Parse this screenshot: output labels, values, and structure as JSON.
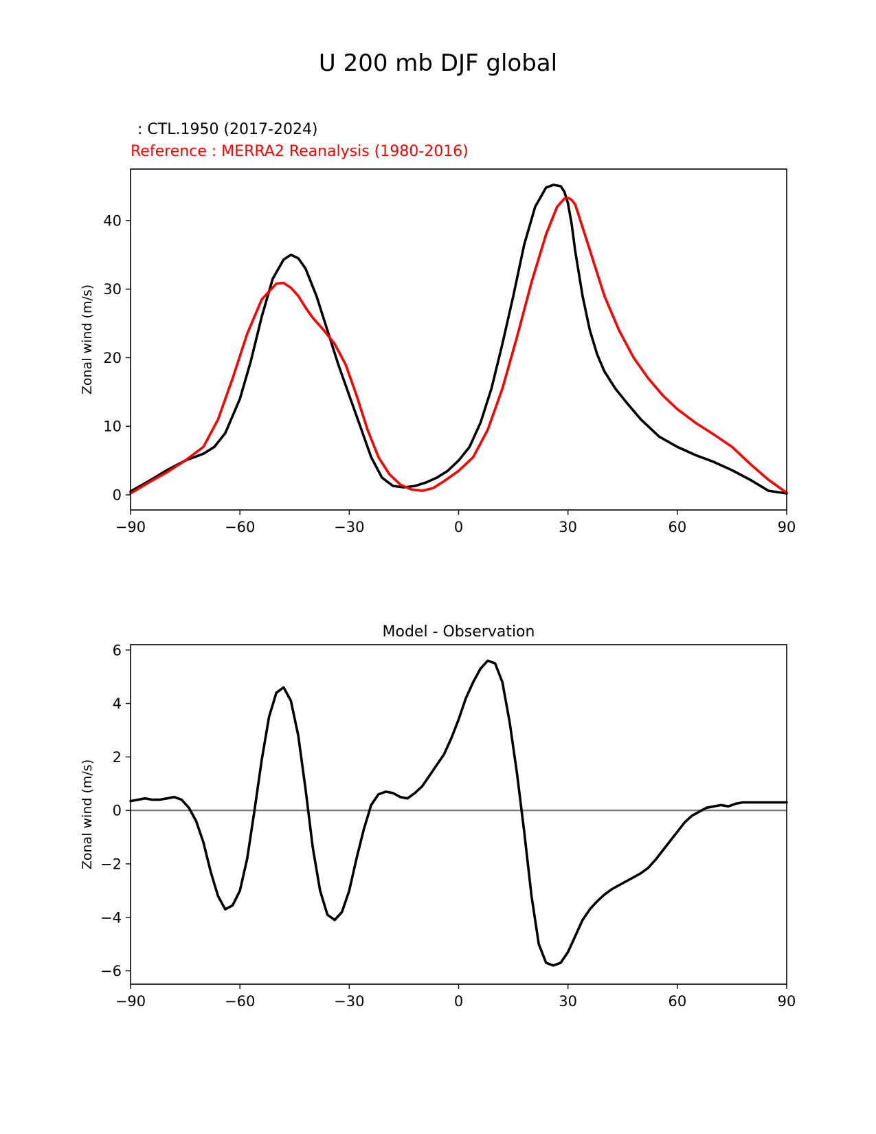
{
  "figure": {
    "title": "U 200 mb DJF global",
    "legend_model": ": CTL.1950 (2017-2024)",
    "legend_reference": "Reference : MERRA2 Reanalysis (1980-2016)",
    "colors": {
      "model": "#000000",
      "reference": "#ff0000",
      "zero_line": "#808080"
    }
  },
  "chart_data": [
    {
      "type": "line",
      "title": "",
      "xlabel": "",
      "ylabel": "Zonal wind (m/s)",
      "xlim": [
        -90,
        90
      ],
      "ylim": [
        -2.2,
        47.5
      ],
      "xticks": [
        -90,
        -60,
        -30,
        0,
        30,
        60,
        90
      ],
      "xtick_labels": [
        "−90",
        "−60",
        "−30",
        "0",
        "30",
        "60",
        "90"
      ],
      "yticks": [
        0,
        10,
        20,
        30,
        40
      ],
      "ytick_labels": [
        "0",
        "10",
        "20",
        "30",
        "40"
      ],
      "grid": false,
      "series": [
        {
          "name": "CTL.1950 (2017-2024)",
          "color": "#000000",
          "x": [
            -90,
            -85,
            -80,
            -75,
            -70,
            -67,
            -64,
            -60,
            -57,
            -54,
            -51,
            -48,
            -46,
            -44,
            -42,
            -39,
            -36,
            -33,
            -30,
            -27,
            -24,
            -21,
            -18,
            -15,
            -12,
            -9,
            -6,
            -3,
            0,
            3,
            6,
            9,
            12,
            15,
            18,
            21,
            24,
            26,
            28,
            29,
            30,
            31,
            32,
            34,
            36,
            38,
            40,
            43,
            46,
            50,
            55,
            60,
            65,
            70,
            75,
            80,
            85,
            90
          ],
          "values": [
            0.5,
            2.0,
            3.6,
            5.0,
            6.0,
            7.0,
            9.0,
            14.0,
            19.5,
            26.0,
            31.5,
            34.3,
            35.0,
            34.5,
            33.0,
            29.0,
            24.0,
            19.0,
            14.5,
            10.0,
            5.5,
            2.5,
            1.3,
            1.1,
            1.3,
            1.8,
            2.5,
            3.5,
            5.0,
            7.0,
            10.5,
            15.5,
            22.0,
            29.0,
            36.5,
            42.0,
            44.8,
            45.2,
            45.0,
            44.2,
            42.5,
            39.5,
            35.5,
            29.0,
            24.0,
            20.5,
            18.0,
            15.5,
            13.5,
            11.0,
            8.5,
            7.0,
            5.8,
            4.8,
            3.6,
            2.2,
            0.6,
            0.2
          ]
        },
        {
          "name": "Reference : MERRA2 Reanalysis (1980-2016)",
          "color": "#ff0000",
          "x": [
            -90,
            -85,
            -80,
            -75,
            -70,
            -66,
            -62,
            -58,
            -54,
            -50,
            -48,
            -46,
            -44,
            -42,
            -40,
            -37,
            -34,
            -31,
            -28,
            -25,
            -22,
            -19,
            -16,
            -13,
            -10,
            -7,
            -4,
            0,
            4,
            8,
            12,
            16,
            20,
            24,
            27,
            29,
            30,
            31,
            32,
            34,
            37,
            40,
            44,
            48,
            52,
            56,
            60,
            65,
            70,
            75,
            80,
            85,
            90
          ],
          "values": [
            0.2,
            1.8,
            3.3,
            5.0,
            7.0,
            11.0,
            17.0,
            23.5,
            28.5,
            30.8,
            30.9,
            30.2,
            29.0,
            27.3,
            25.8,
            24.0,
            22.0,
            19.0,
            14.5,
            9.5,
            5.5,
            3.0,
            1.5,
            0.8,
            0.6,
            1.0,
            2.0,
            3.5,
            5.5,
            9.5,
            15.5,
            23.0,
            31.0,
            38.0,
            42.0,
            43.2,
            43.3,
            43.0,
            42.3,
            39.0,
            34.0,
            29.0,
            24.0,
            20.0,
            17.0,
            14.5,
            12.5,
            10.5,
            8.8,
            7.0,
            4.5,
            2.2,
            0.3
          ]
        }
      ]
    },
    {
      "type": "line",
      "title": "Model - Observation",
      "xlabel": "",
      "ylabel": "Zonal wind (m/s)",
      "xlim": [
        -90,
        90
      ],
      "ylim": [
        -6.5,
        6.2
      ],
      "xticks": [
        -90,
        -60,
        -30,
        0,
        30,
        60,
        90
      ],
      "xtick_labels": [
        "−90",
        "−60",
        "−30",
        "0",
        "30",
        "60",
        "90"
      ],
      "yticks": [
        -6,
        -4,
        -2,
        0,
        2,
        4,
        6
      ],
      "ytick_labels": [
        "−6",
        "−4",
        "−2",
        "0",
        "2",
        "4",
        "6"
      ],
      "grid": false,
      "reference_line": 0,
      "series": [
        {
          "name": "Model - Observation",
          "color": "#000000",
          "x": [
            -90,
            -88,
            -86,
            -84,
            -82,
            -80,
            -78,
            -76,
            -74,
            -72,
            -70,
            -68,
            -66,
            -64,
            -62,
            -60,
            -58,
            -56,
            -54,
            -52,
            -50,
            -48,
            -46,
            -44,
            -42,
            -40,
            -38,
            -36,
            -34,
            -32,
            -30,
            -28,
            -26,
            -24,
            -22,
            -20,
            -18,
            -16,
            -14,
            -12,
            -10,
            -8,
            -6,
            -4,
            -2,
            0,
            2,
            4,
            6,
            8,
            10,
            12,
            14,
            16,
            18,
            20,
            22,
            24,
            26,
            28,
            30,
            32,
            34,
            36,
            38,
            40,
            42,
            44,
            46,
            48,
            50,
            52,
            54,
            56,
            58,
            60,
            62,
            64,
            66,
            68,
            70,
            72,
            74,
            76,
            78,
            80,
            82,
            84,
            86,
            88,
            90
          ],
          "values": [
            0.35,
            0.4,
            0.45,
            0.4,
            0.4,
            0.45,
            0.5,
            0.4,
            0.1,
            -0.4,
            -1.2,
            -2.3,
            -3.2,
            -3.7,
            -3.55,
            -3.0,
            -1.8,
            0.0,
            1.9,
            3.5,
            4.4,
            4.6,
            4.1,
            2.8,
            0.8,
            -1.4,
            -3.0,
            -3.9,
            -4.1,
            -3.8,
            -3.0,
            -1.8,
            -0.7,
            0.2,
            0.6,
            0.7,
            0.65,
            0.5,
            0.45,
            0.65,
            0.9,
            1.3,
            1.7,
            2.1,
            2.7,
            3.4,
            4.2,
            4.8,
            5.3,
            5.6,
            5.5,
            4.8,
            3.3,
            1.4,
            -0.8,
            -3.2,
            -5.0,
            -5.7,
            -5.8,
            -5.7,
            -5.3,
            -4.7,
            -4.1,
            -3.7,
            -3.4,
            -3.15,
            -2.95,
            -2.8,
            -2.65,
            -2.5,
            -2.35,
            -2.15,
            -1.85,
            -1.5,
            -1.15,
            -0.8,
            -0.45,
            -0.2,
            -0.05,
            0.1,
            0.15,
            0.2,
            0.15,
            0.25,
            0.3,
            0.3,
            0.3,
            0.3,
            0.3,
            0.3,
            0.3
          ]
        }
      ]
    }
  ]
}
